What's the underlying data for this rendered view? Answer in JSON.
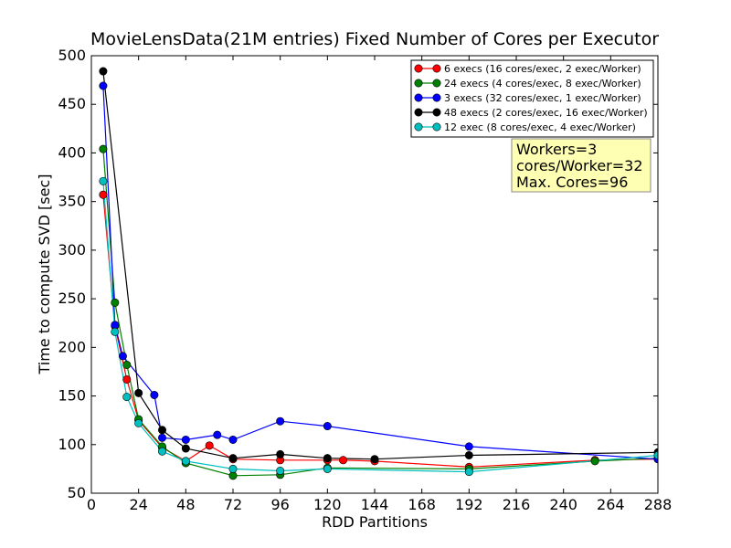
{
  "chart_data": {
    "type": "line",
    "title": "MovieLensData(21M entries) Fixed Number of Cores per Executor",
    "xlabel": "RDD Partitions",
    "ylabel": "Time to compute SVD [sec]",
    "xlim": [
      0,
      288
    ],
    "ylim": [
      50,
      500
    ],
    "xticks": [
      0,
      24,
      48,
      72,
      96,
      120,
      144,
      168,
      192,
      216,
      240,
      264,
      288
    ],
    "yticks": [
      50,
      100,
      150,
      200,
      250,
      300,
      350,
      400,
      450,
      500
    ],
    "legend_position": "upper-right",
    "grid": false,
    "series": [
      {
        "name": "6 execs (16 cores/exec, 2 exec/Worker)",
        "color": "#ff0000",
        "x": [
          6,
          12,
          18,
          24,
          36,
          48,
          60,
          72,
          96,
          120,
          128,
          144,
          192,
          256,
          288
        ],
        "y": [
          357,
          222,
          167,
          125,
          97,
          83,
          99,
          85,
          84,
          84,
          84,
          83,
          77,
          84,
          85
        ]
      },
      {
        "name": "24 execs (4 cores/exec, 8 exec/Worker)",
        "color": "#008000",
        "x": [
          6,
          12,
          18,
          24,
          36,
          48,
          72,
          96,
          120,
          192,
          256,
          288
        ],
        "y": [
          404,
          246,
          182,
          126,
          98,
          81,
          68,
          69,
          76,
          75,
          83,
          86
        ]
      },
      {
        "name": "3 execs (32 cores/exec, 1 exec/Worker)",
        "color": "#0000ff",
        "x": [
          6,
          12,
          16,
          32,
          36,
          48,
          64,
          72,
          96,
          120,
          192,
          288
        ],
        "y": [
          469,
          223,
          191,
          151,
          107,
          105,
          110,
          105,
          124,
          119,
          98,
          85
        ]
      },
      {
        "name": "48 execs (2 cores/exec, 16 exec/Worker)",
        "color": "#000000",
        "x": [
          6,
          24,
          36,
          48,
          72,
          96,
          120,
          144,
          192,
          288
        ],
        "y": [
          484,
          153,
          115,
          96,
          86,
          90,
          86,
          85,
          89,
          92
        ]
      },
      {
        "name": "12 exec (8 cores/exec, 4 exec/Worker)",
        "color": "#00bfbf",
        "x": [
          6,
          12,
          18,
          24,
          36,
          48,
          72,
          96,
          120,
          192,
          288
        ],
        "y": [
          371,
          216,
          149,
          122,
          93,
          83,
          75,
          73,
          75,
          72,
          89
        ]
      }
    ],
    "annotation": {
      "lines": [
        "Workers=3",
        "cores/Worker=32",
        "Max. Cores=96"
      ],
      "bg_color": "#ffffb3"
    }
  }
}
